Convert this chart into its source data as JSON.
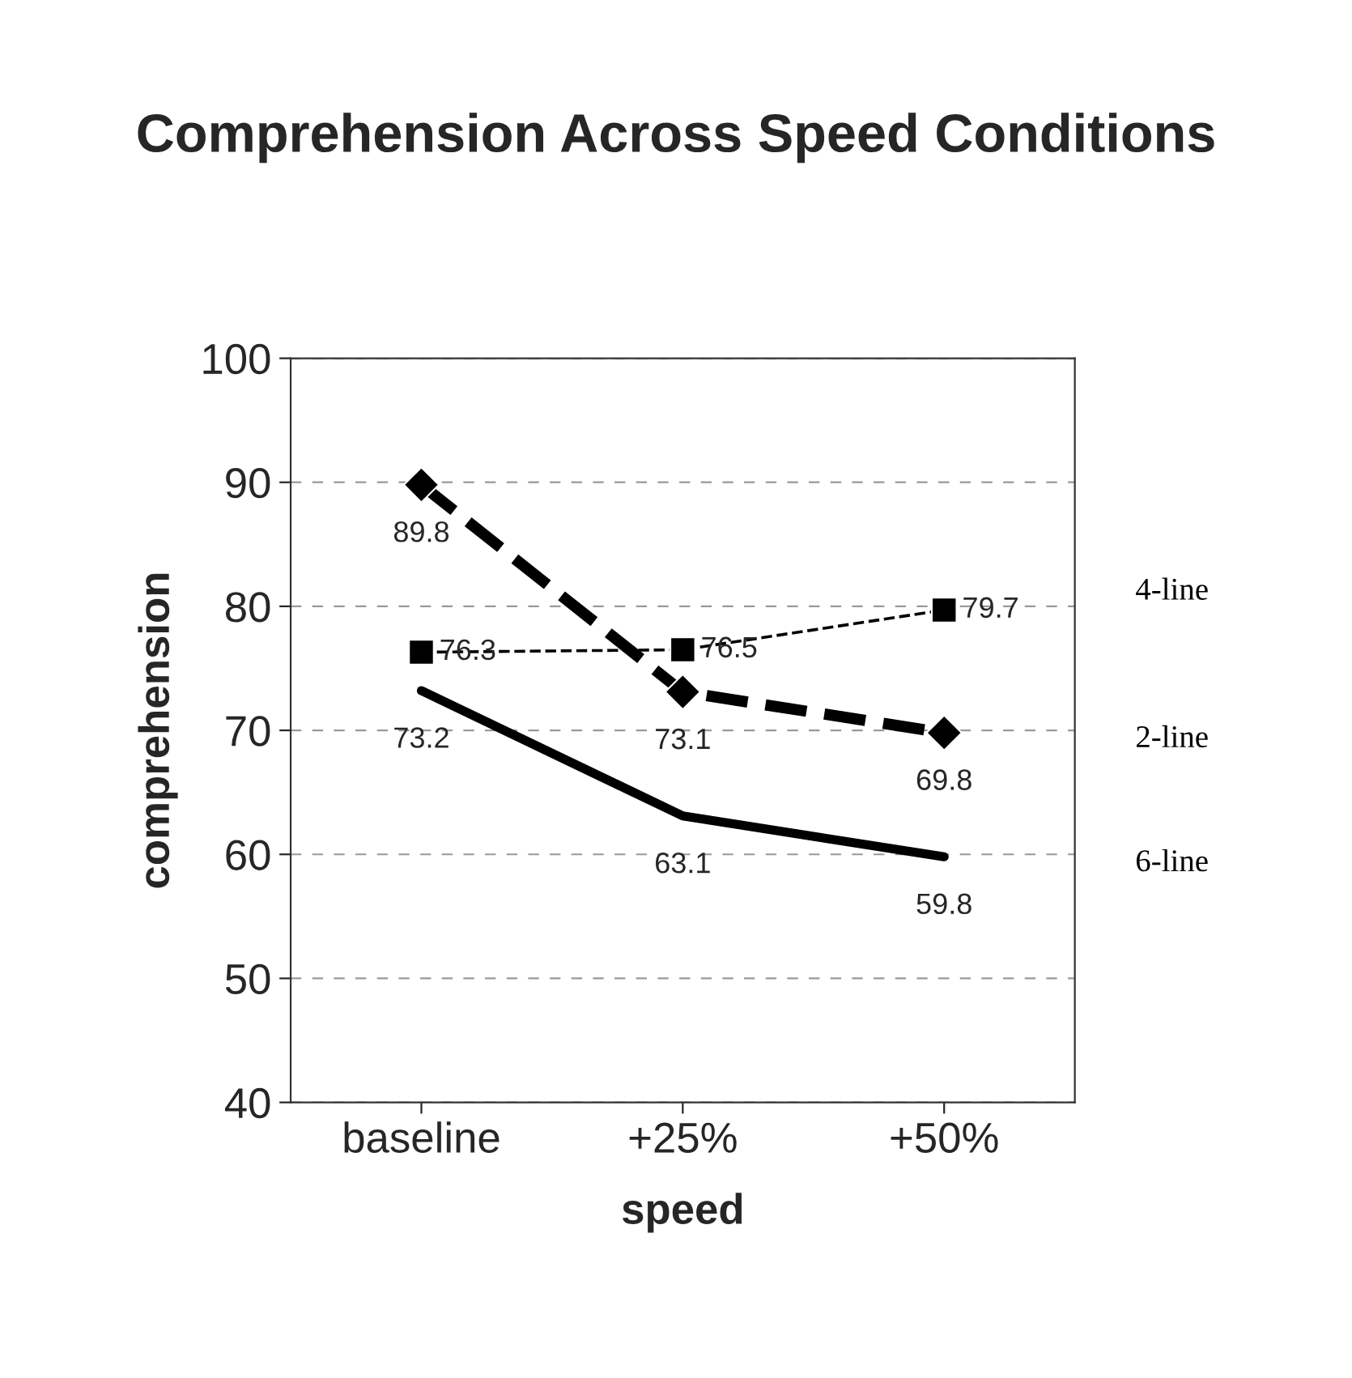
{
  "chart_data": {
    "type": "line",
    "title": "Comprehension Across Speed Conditions",
    "xlabel": "speed",
    "ylabel": "comprehension",
    "categories": [
      "baseline",
      "+25%",
      "+50%"
    ],
    "series": [
      {
        "name": "4-line",
        "color": "#000000",
        "values": [
          76.3,
          76.5,
          79.7
        ],
        "marker": "square",
        "line_style": "dashed"
      },
      {
        "name": "2-line",
        "color": "#000000",
        "values": [
          89.8,
          73.1,
          69.8
        ],
        "marker": "diamond",
        "line_style": "dashed"
      },
      {
        "name": "6-line",
        "color": "#000000",
        "values": [
          73.2,
          63.1,
          59.8
        ],
        "marker": "none",
        "line_style": "solid"
      }
    ],
    "ylim": [
      40,
      100
    ],
    "yticks": [
      40,
      50,
      60,
      70,
      80,
      90,
      100
    ],
    "grid": "y",
    "data_labels": true
  }
}
